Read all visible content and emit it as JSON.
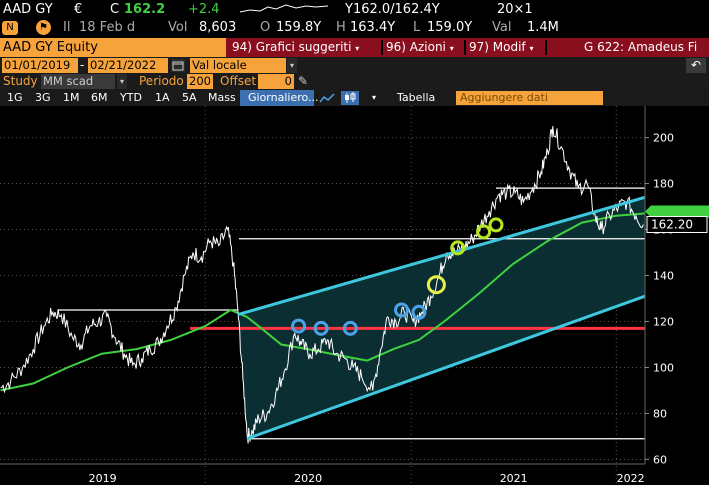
{
  "ticker": {
    "symbol": "AAD GY",
    "currency": "€",
    "last_label": "C",
    "last": "162.2",
    "change": "+2.4",
    "bid_ask": "Y162.0/162.4Y",
    "size": "20×1",
    "date_prefix": "Il",
    "date": "18 Feb d",
    "volume_label": "Vol",
    "volume": "8,603",
    "open_label": "O",
    "open": "159.8Y",
    "high_label": "H",
    "high": "163.4Y",
    "low_label": "L",
    "low": "159.0Y",
    "value_label": "Val",
    "value": "1.4M"
  },
  "titlebar": {
    "security": "AAD GY Equity",
    "menu_suggested": "94) Grafici suggeriti",
    "menu_actions": "96) Azioni",
    "menu_modify": "97) Modif",
    "chart_name": "G 622: Amadeus Fi"
  },
  "range": {
    "start_date": "01/01/2019",
    "end_date": "02/21/2022",
    "currency_mode": "Val locale"
  },
  "study": {
    "label": "Study",
    "value": "MM scad",
    "period_label": "Periodo",
    "period": "200",
    "offset_label": "Offset",
    "offset": "0"
  },
  "toolbar": {
    "periods": [
      "1G",
      "3G",
      "1M",
      "6M",
      "YTD",
      "1A",
      "5A",
      "Mass"
    ],
    "frequency": "Giornaliero...",
    "table_label": "Tabella",
    "add_data_label": "Aggiungere dati"
  },
  "chart_data": {
    "type": "line",
    "title": "",
    "xlabel": "",
    "ylabel": "",
    "ylim": [
      58,
      212
    ],
    "xlim": [
      "2019-01-01",
      "2022-02-21"
    ],
    "yticks": [
      60,
      80,
      100,
      120,
      140,
      160,
      180,
      200
    ],
    "xticks": [
      "2019",
      "2020",
      "2021",
      "2022"
    ],
    "last_price_label": "162.20",
    "colors": {
      "price": "#ffffff",
      "ma200": "#3fd13f",
      "channel": "#3ec8e0",
      "channel_fill": "#0c3036",
      "support": "#ff3344",
      "markers_blue": "#4aa3e8",
      "markers_green": "#b5e61d",
      "marker_yellow": "#e8f04a"
    },
    "series": [
      {
        "name": "",
        "role": "price",
        "points": [
          [
            "2019-01-02",
            91
          ],
          [
            "2019-01-20",
            94
          ],
          [
            "2019-02-10",
            100
          ],
          [
            "2019-03-01",
            108
          ],
          [
            "2019-03-20",
            118
          ],
          [
            "2019-04-05",
            124
          ],
          [
            "2019-04-20",
            123
          ],
          [
            "2019-05-10",
            113
          ],
          [
            "2019-05-25",
            110
          ],
          [
            "2019-06-10",
            118
          ],
          [
            "2019-06-25",
            120
          ],
          [
            "2019-07-10",
            122
          ],
          [
            "2019-07-25",
            113
          ],
          [
            "2019-08-10",
            106
          ],
          [
            "2019-08-25",
            101
          ],
          [
            "2019-09-10",
            104
          ],
          [
            "2019-09-25",
            108
          ],
          [
            "2019-10-10",
            111
          ],
          [
            "2019-10-25",
            118
          ],
          [
            "2019-11-10",
            126
          ],
          [
            "2019-11-25",
            140
          ],
          [
            "2019-12-10",
            150
          ],
          [
            "2019-12-25",
            148
          ],
          [
            "2020-01-10",
            155
          ],
          [
            "2020-01-25",
            153
          ],
          [
            "2020-02-10",
            160
          ],
          [
            "2020-02-20",
            145
          ],
          [
            "2020-02-28",
            125
          ],
          [
            "2020-03-08",
            95
          ],
          [
            "2020-03-16",
            70
          ],
          [
            "2020-03-25",
            72
          ],
          [
            "2020-04-05",
            78
          ],
          [
            "2020-04-20",
            80
          ],
          [
            "2020-05-05",
            88
          ],
          [
            "2020-05-20",
            98
          ],
          [
            "2020-06-08",
            115
          ],
          [
            "2020-06-20",
            110
          ],
          [
            "2020-07-05",
            106
          ],
          [
            "2020-07-20",
            108
          ],
          [
            "2020-08-05",
            112
          ],
          [
            "2020-08-20",
            106
          ],
          [
            "2020-09-05",
            104
          ],
          [
            "2020-09-20",
            100
          ],
          [
            "2020-10-05",
            96
          ],
          [
            "2020-10-25",
            90
          ],
          [
            "2020-11-08",
            108
          ],
          [
            "2020-11-20",
            122
          ],
          [
            "2020-12-05",
            120
          ],
          [
            "2020-12-20",
            124
          ],
          [
            "2021-01-05",
            120
          ],
          [
            "2021-01-20",
            124
          ],
          [
            "2021-02-05",
            131
          ],
          [
            "2021-02-20",
            140
          ],
          [
            "2021-03-05",
            150
          ],
          [
            "2021-03-20",
            150
          ],
          [
            "2021-04-05",
            152
          ],
          [
            "2021-04-20",
            156
          ],
          [
            "2021-05-05",
            162
          ],
          [
            "2021-05-20",
            168
          ],
          [
            "2021-06-05",
            175
          ],
          [
            "2021-06-20",
            176
          ],
          [
            "2021-07-05",
            176
          ],
          [
            "2021-07-20",
            172
          ],
          [
            "2021-08-05",
            178
          ],
          [
            "2021-08-20",
            185
          ],
          [
            "2021-09-01",
            194
          ],
          [
            "2021-09-10",
            205
          ],
          [
            "2021-09-25",
            196
          ],
          [
            "2021-10-10",
            186
          ],
          [
            "2021-10-25",
            178
          ],
          [
            "2021-11-10",
            180
          ],
          [
            "2021-11-25",
            165
          ],
          [
            "2021-12-05",
            160
          ],
          [
            "2021-12-20",
            166
          ],
          [
            "2022-01-05",
            170
          ],
          [
            "2022-01-20",
            172
          ],
          [
            "2022-02-05",
            166
          ],
          [
            "2022-02-18",
            162.2
          ]
        ]
      },
      {
        "name": "",
        "role": "ma200",
        "points": [
          [
            "2019-01-02",
            90
          ],
          [
            "2019-03-01",
            93
          ],
          [
            "2019-05-01",
            100
          ],
          [
            "2019-07-01",
            106
          ],
          [
            "2019-09-01",
            108
          ],
          [
            "2019-11-01",
            112
          ],
          [
            "2020-01-01",
            118
          ],
          [
            "2020-02-15",
            125
          ],
          [
            "2020-03-15",
            122
          ],
          [
            "2020-04-15",
            116
          ],
          [
            "2020-05-15",
            110
          ],
          [
            "2020-07-01",
            108
          ],
          [
            "2020-09-01",
            105
          ],
          [
            "2020-10-15",
            103
          ],
          [
            "2020-12-01",
            108
          ],
          [
            "2021-01-15",
            112
          ],
          [
            "2021-03-01",
            120
          ],
          [
            "2021-05-01",
            132
          ],
          [
            "2021-07-01",
            145
          ],
          [
            "2021-09-01",
            155
          ],
          [
            "2021-11-01",
            163
          ],
          [
            "2022-01-01",
            166
          ],
          [
            "2022-02-21",
            167
          ]
        ]
      }
    ],
    "lines": {
      "horizontal_white": [
        {
          "y": 178,
          "x_from": "2021-06-01",
          "x_to": "2022-02-21"
        },
        {
          "y": 156,
          "x_from": "2020-03-01",
          "x_to": "2022-02-21"
        },
        {
          "y": 125,
          "x_from": "2019-04-15",
          "x_to": "2020-02-28"
        },
        {
          "y": 69,
          "x_from": "2020-03-15",
          "x_to": "2022-02-21"
        }
      ],
      "support_red": {
        "y": 117,
        "x_from": "2019-12-05",
        "x_to": "2022-02-21"
      },
      "channel_upper": [
        [
          "2020-02-28",
          123
        ],
        [
          "2022-02-21",
          174
        ]
      ],
      "channel_lower": [
        [
          "2020-03-15",
          69
        ],
        [
          "2022-02-21",
          131
        ]
      ]
    },
    "markers": [
      {
        "date": "2020-06-15",
        "y": 118,
        "color": "blue"
      },
      {
        "date": "2020-07-25",
        "y": 117,
        "color": "blue"
      },
      {
        "date": "2020-09-15",
        "y": 117,
        "color": "blue"
      },
      {
        "date": "2020-12-15",
        "y": 125,
        "color": "blue"
      },
      {
        "date": "2021-01-15",
        "y": 124,
        "color": "blue"
      },
      {
        "date": "2021-02-15",
        "y": 136,
        "color": "yellow"
      },
      {
        "date": "2021-03-25",
        "y": 152,
        "color": "green"
      },
      {
        "date": "2021-05-10",
        "y": 159,
        "color": "green"
      },
      {
        "date": "2021-06-01",
        "y": 162,
        "color": "green"
      }
    ]
  }
}
